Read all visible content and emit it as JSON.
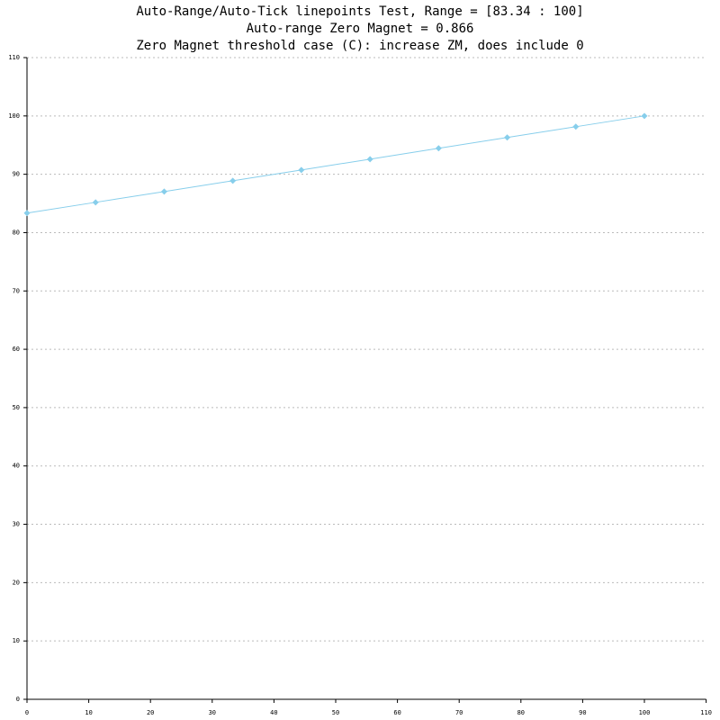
{
  "chart_data": {
    "type": "line",
    "title": [
      "Auto-Range/Auto-Tick linepoints Test, Range = [83.34 : 100]",
      "Auto-range Zero Magnet = 0.866",
      "Zero Magnet threshold case (C): increase ZM, does include 0"
    ],
    "x": [
      0,
      11.11,
      22.22,
      33.33,
      44.44,
      55.56,
      66.67,
      77.78,
      88.89,
      100
    ],
    "series": [
      {
        "color": "#87ceeb",
        "values": [
          83.34,
          85.19,
          87.04,
          88.89,
          90.74,
          92.59,
          94.45,
          96.3,
          98.15,
          100
        ]
      }
    ],
    "xlim": [
      0,
      110
    ],
    "xticks": [
      0,
      10,
      20,
      30,
      40,
      50,
      60,
      70,
      80,
      90,
      100,
      110
    ],
    "ylim": [
      0,
      110
    ],
    "yticks": [
      0,
      10,
      20,
      30,
      40,
      50,
      60,
      70,
      80,
      90,
      100,
      110
    ],
    "grid": true
  }
}
